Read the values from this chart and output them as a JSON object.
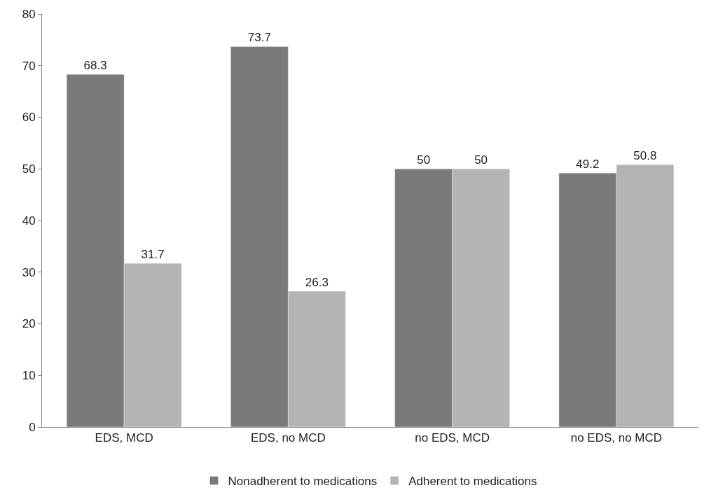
{
  "chart_data": {
    "type": "bar",
    "categories": [
      "EDS, MCD",
      "EDS, no MCD",
      "no EDS, MCD",
      "no EDS, no MCD"
    ],
    "series": [
      {
        "name": "Nonadherent to medications",
        "color": "#7a7a7a",
        "values": [
          68.3,
          73.7,
          50,
          49.2
        ]
      },
      {
        "name": "Adherent to medications",
        "color": "#b4b4b4",
        "values": [
          31.7,
          26.3,
          50,
          50.8
        ]
      }
    ],
    "ylim": [
      0,
      80
    ],
    "yticks": [
      0,
      10,
      20,
      30,
      40,
      50,
      60,
      70,
      80
    ],
    "legend": "bottom",
    "data_labels": true
  }
}
